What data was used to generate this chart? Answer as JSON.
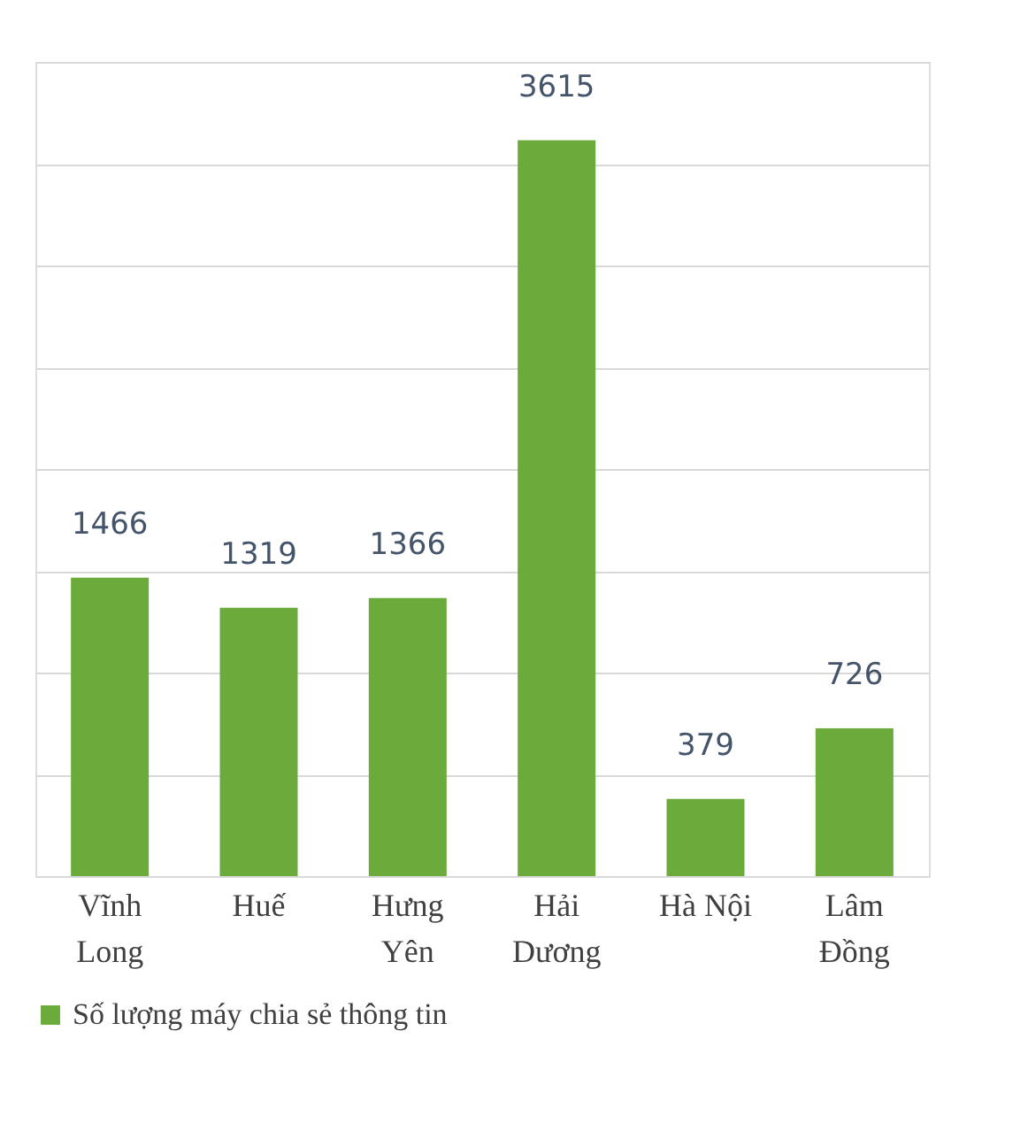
{
  "chart_data": {
    "type": "bar",
    "categories": [
      "Vĩnh Long",
      "Huế",
      "Hưng Yên",
      "Hải Dương",
      "Hà Nội",
      "Lâm Đồng"
    ],
    "series": [
      {
        "name": "Số lượng máy chia sẻ thông tin",
        "color": "#6aab3c",
        "values": [
          1466,
          1319,
          1366,
          3615,
          379,
          726
        ]
      }
    ],
    "ylim": [
      0,
      4000
    ],
    "yticks": [
      {
        "value": 0,
        "label": null
      },
      {
        "value": 500,
        "label": null
      },
      {
        "value": 1000,
        "label": null
      },
      {
        "value": 1500,
        "label": null
      },
      {
        "value": 2000,
        "label": null
      },
      {
        "value": 2500,
        "label": null
      },
      {
        "value": 3000,
        "label": null
      },
      {
        "value": 3500,
        "label": null
      },
      {
        "value": 4000,
        "label": null
      }
    ],
    "tick_labels": "x",
    "grid": "y",
    "data_labels": true,
    "legend": "bottom"
  }
}
